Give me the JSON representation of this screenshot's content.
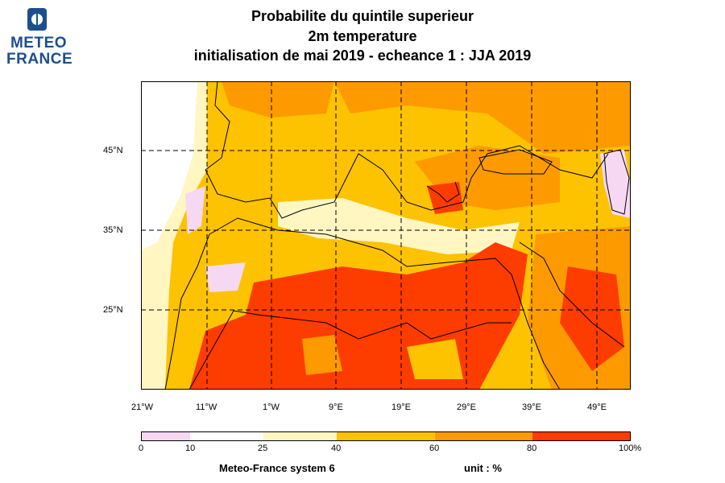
{
  "logo": {
    "line1": "METEO",
    "line2": "FRANCE"
  },
  "title": {
    "line1": "Probabilite du quintile superieur",
    "line2": "2m temperature",
    "line3": "initialisation de mai 2019  -  echeance 1 : JJA 2019"
  },
  "map": {
    "lon_labels": [
      "21°W",
      "11°W",
      "1°W",
      "9°E",
      "19°E",
      "29°E",
      "39°E",
      "49°E"
    ],
    "lat_labels": [
      "45°N",
      "35°N",
      "25°N"
    ],
    "lon_range": [
      -21,
      55
    ],
    "lat_range": [
      15,
      54
    ]
  },
  "colorbar": {
    "labels": [
      "0",
      "10",
      "25",
      "40",
      "60",
      "80",
      "100%"
    ],
    "colors": [
      "#f7d8f3",
      "#ffffff",
      "#fff6c2",
      "#fdc200",
      "#fd9a00",
      "#fd3c00"
    ]
  },
  "footer": {
    "system": "Meteo-France system 6",
    "unit": "unit : %"
  }
}
